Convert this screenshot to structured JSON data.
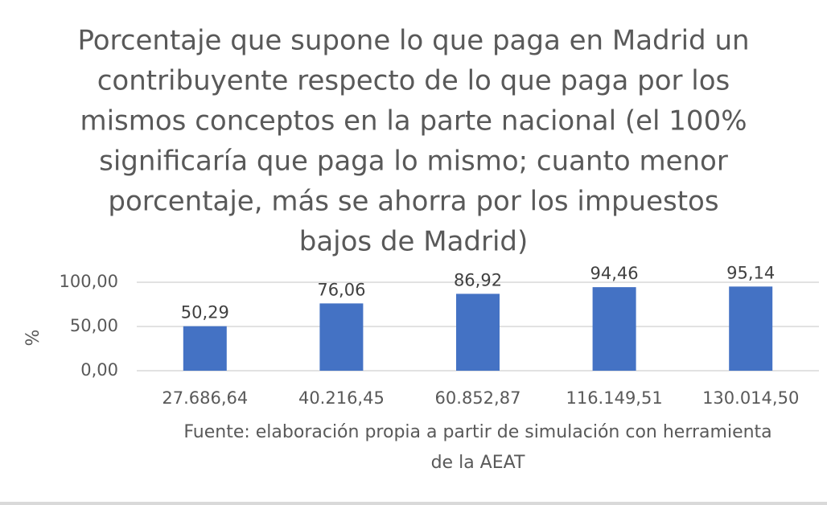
{
  "chart_data": {
    "type": "bar",
    "title_lines": [
      "Porcentaje que supone lo que paga en Madrid un",
      "contribuyente respecto de lo que paga por los",
      "mismos conceptos en la parte nacional (el 100%",
      "significaría que paga lo mismo; cuanto menor",
      "porcentaje, más se ahorra por los impuestos",
      "bajos de Madrid)"
    ],
    "categories": [
      "27.686,64",
      "40.216,45",
      "60.852,87",
      "116.149,51",
      "130.014,50"
    ],
    "values": [
      50.29,
      76.06,
      86.92,
      94.46,
      95.14
    ],
    "data_labels": [
      "50,29",
      "76,06",
      "86,92",
      "94,46",
      "95,14"
    ],
    "ylabel": "%",
    "xlabel_lines": [
      "Fuente: elaboración propia a partir de simulación con herramienta",
      "de la AEAT"
    ],
    "ylim": [
      0,
      100
    ],
    "yticks": [
      0,
      50,
      100
    ],
    "ytick_labels": [
      "0,00",
      "50,00",
      "100,00"
    ],
    "grid": true,
    "bar_color": "#4472c4"
  }
}
